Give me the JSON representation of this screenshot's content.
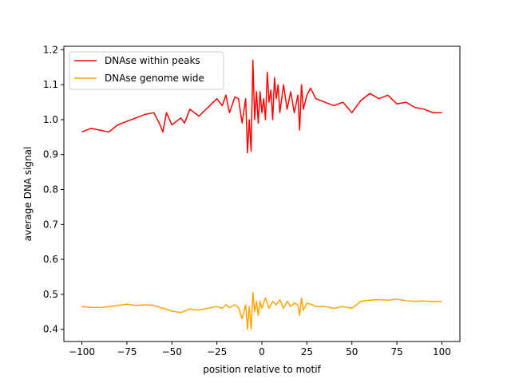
{
  "chart_data": {
    "type": "line",
    "title": "",
    "xlabel": "position relative to motif",
    "ylabel": "average DNA signal",
    "xlim": [
      -110,
      110
    ],
    "ylim": [
      0.365,
      1.21
    ],
    "xticks": [
      -100,
      -75,
      -50,
      -25,
      0,
      25,
      50,
      75,
      100
    ],
    "xtick_labels": [
      "−100",
      "−75",
      "−50",
      "−25",
      "0",
      "25",
      "50",
      "75",
      "100"
    ],
    "yticks": [
      0.4,
      0.5,
      0.6,
      0.7,
      0.8,
      0.9,
      1.0,
      1.1,
      1.2
    ],
    "ytick_labels": [
      "0.4",
      "0.5",
      "0.6",
      "0.7",
      "0.8",
      "0.9",
      "1.0",
      "1.1",
      "1.2"
    ],
    "grid": false,
    "legend_position": "top-left",
    "series": [
      {
        "name": "DNAse within peaks",
        "color": "#ff0000",
        "x": [
          -100,
          -95,
          -90,
          -85,
          -80,
          -75,
          -70,
          -65,
          -60,
          -57,
          -55,
          -53,
          -50,
          -45,
          -43,
          -40,
          -35,
          -30,
          -28,
          -25,
          -22,
          -20,
          -18,
          -15,
          -13,
          -11,
          -9,
          -8,
          -7,
          -6,
          -5,
          -4,
          -3,
          -2,
          -1,
          0,
          1,
          2,
          3,
          4,
          5,
          6,
          7,
          8,
          9,
          10,
          12,
          14,
          16,
          18,
          20,
          21,
          22,
          23,
          25,
          27,
          30,
          35,
          40,
          45,
          50,
          55,
          60,
          65,
          70,
          75,
          80,
          85,
          90,
          95,
          100
        ],
        "y": [
          0.965,
          0.975,
          0.97,
          0.965,
          0.985,
          0.995,
          1.005,
          1.015,
          1.02,
          0.99,
          0.965,
          1.02,
          0.985,
          1.005,
          0.99,
          1.03,
          1.01,
          1.035,
          1.045,
          1.06,
          1.04,
          1.07,
          1.02,
          1.065,
          1.06,
          0.99,
          1.06,
          0.905,
          1.0,
          0.91,
          1.17,
          1.0,
          1.08,
          0.99,
          1.08,
          1.02,
          1.06,
          1.0,
          1.135,
          1.05,
          1.085,
          1.0,
          1.12,
          1.06,
          1.1,
          1.02,
          1.1,
          1.03,
          1.08,
          1.02,
          1.07,
          0.97,
          1.1,
          1.03,
          1.07,
          1.09,
          1.06,
          1.05,
          1.04,
          1.05,
          1.02,
          1.055,
          1.075,
          1.06,
          1.07,
          1.045,
          1.05,
          1.035,
          1.03,
          1.02,
          1.02
        ]
      },
      {
        "name": "DNAse genome wide",
        "color": "#ffa500",
        "x": [
          -100,
          -95,
          -90,
          -85,
          -80,
          -75,
          -70,
          -65,
          -60,
          -55,
          -50,
          -45,
          -40,
          -35,
          -30,
          -25,
          -22,
          -20,
          -18,
          -15,
          -13,
          -11,
          -9,
          -8,
          -7,
          -6,
          -5,
          -4,
          -3,
          -2,
          -1,
          0,
          2,
          4,
          6,
          8,
          10,
          12,
          14,
          16,
          18,
          20,
          21,
          22,
          23,
          25,
          28,
          30,
          35,
          40,
          45,
          50,
          55,
          60,
          65,
          70,
          75,
          80,
          85,
          90,
          95,
          100
        ],
        "y": [
          0.465,
          0.463,
          0.462,
          0.465,
          0.468,
          0.472,
          0.468,
          0.47,
          0.468,
          0.46,
          0.452,
          0.448,
          0.458,
          0.455,
          0.46,
          0.465,
          0.46,
          0.47,
          0.462,
          0.47,
          0.462,
          0.43,
          0.47,
          0.4,
          0.465,
          0.4,
          0.505,
          0.45,
          0.48,
          0.44,
          0.48,
          0.46,
          0.49,
          0.46,
          0.48,
          0.47,
          0.485,
          0.46,
          0.48,
          0.465,
          0.475,
          0.47,
          0.44,
          0.49,
          0.455,
          0.475,
          0.47,
          0.465,
          0.465,
          0.46,
          0.465,
          0.46,
          0.48,
          0.483,
          0.485,
          0.483,
          0.486,
          0.482,
          0.48,
          0.481,
          0.479,
          0.48
        ]
      }
    ]
  }
}
